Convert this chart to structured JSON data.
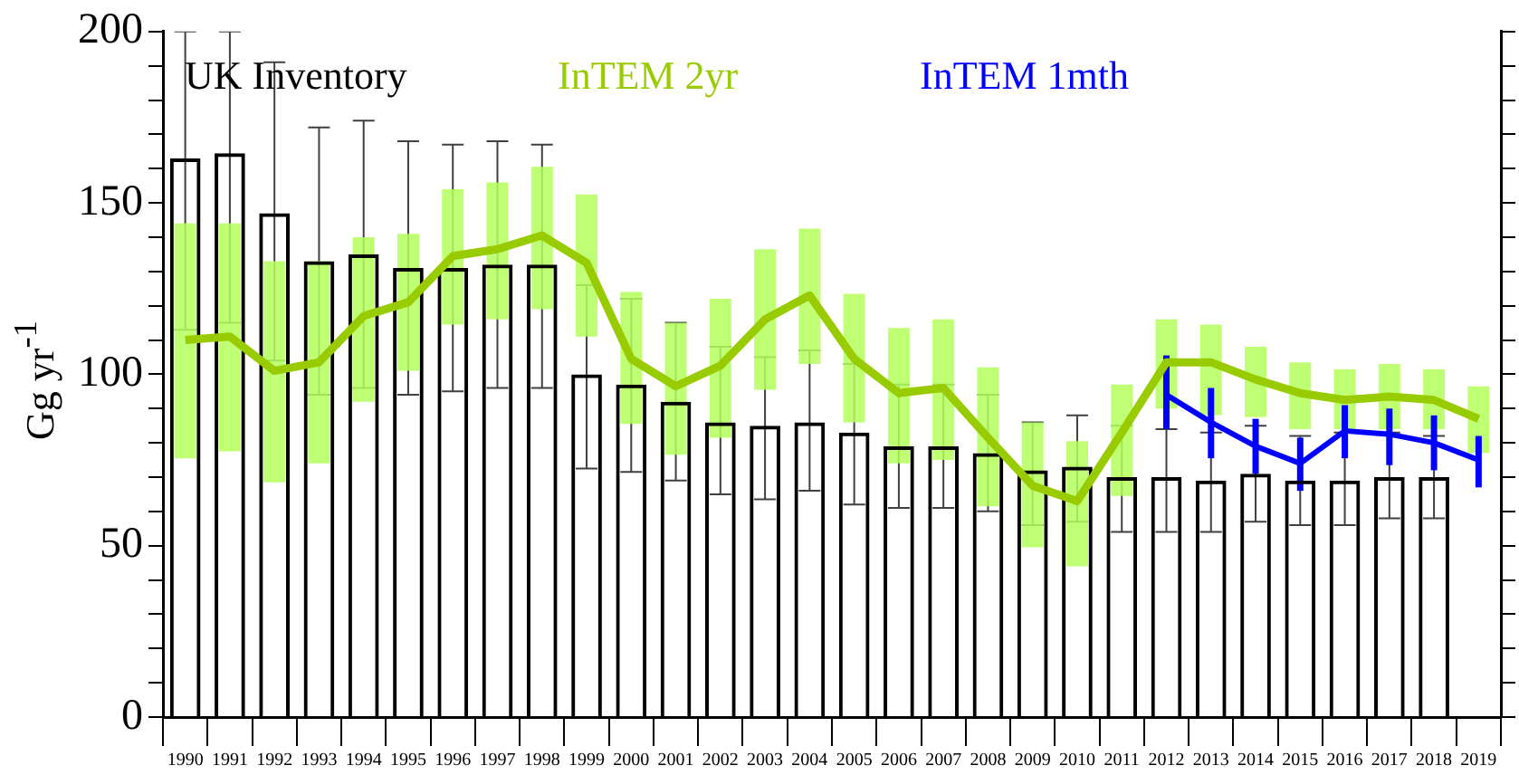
{
  "chart_data": {
    "type": "bar",
    "ylabel": "Gg yr$^{-1}$",
    "legend": "top left",
    "grid": false,
    "categories": [
      "1990",
      "1991",
      "1992",
      "1993",
      "1994",
      "1995",
      "1996",
      "1997",
      "1998",
      "1999",
      "2000",
      "2001",
      "2002",
      "2003",
      "2004",
      "2005",
      "2006",
      "2007",
      "2008",
      "2009",
      "2010",
      "2011",
      "2012",
      "2013",
      "2014",
      "2015",
      "2016",
      "2017",
      "2018",
      "2019"
    ],
    "ylim": [
      0,
      200
    ],
    "yticks": [
      0,
      {
        "value": 10,
        "label": null
      },
      {
        "value": 20,
        "label": null
      },
      {
        "value": 30,
        "label": null
      },
      {
        "value": 40,
        "label": null
      },
      50,
      {
        "value": 60,
        "label": null
      },
      {
        "value": 70,
        "label": null
      },
      {
        "value": 80,
        "label": null
      },
      {
        "value": 90,
        "label": null
      },
      100,
      {
        "value": 110,
        "label": null
      },
      {
        "value": 120,
        "label": null
      },
      {
        "value": 130,
        "label": null
      },
      {
        "value": 140,
        "label": null
      },
      150,
      {
        "value": 160,
        "label": null
      },
      {
        "value": 170,
        "label": null
      },
      {
        "value": 180,
        "label": null
      },
      {
        "value": 190,
        "label": null
      },
      200
    ],
    "series": [
      {
        "name": "UK Inventory",
        "color": "#000000",
        "values": [
          163,
          164.5,
          147,
          133,
          135,
          131,
          131,
          132,
          132,
          100,
          97,
          92,
          86,
          85,
          86,
          83,
          79,
          79,
          77,
          72,
          73,
          70,
          70,
          69,
          71,
          69,
          69,
          70,
          70,
          null
        ],
        "errors": [
          [
            113,
            200
          ],
          [
            115,
            200
          ],
          [
            104,
            191
          ],
          [
            94,
            172
          ],
          [
            96,
            174
          ],
          [
            94,
            168
          ],
          [
            95,
            167
          ],
          [
            96,
            168
          ],
          [
            96,
            167
          ],
          [
            72.5,
            126
          ],
          [
            71.5,
            122
          ],
          [
            69,
            115
          ],
          [
            65,
            108
          ],
          [
            63.5,
            105
          ],
          [
            66,
            107
          ],
          [
            62,
            103
          ],
          [
            61,
            97
          ],
          [
            61,
            97
          ],
          [
            60,
            94
          ],
          [
            56,
            86
          ],
          [
            57,
            88
          ],
          [
            54,
            85
          ],
          [
            54,
            84
          ],
          [
            54,
            83
          ],
          [
            57,
            85
          ],
          [
            56,
            82
          ],
          [
            56,
            83
          ],
          [
            58,
            83
          ],
          [
            58,
            82
          ],
          null
        ]
      },
      {
        "name": "InTEM 2yr",
        "type": "line",
        "color": "#99cc00",
        "values": [
          110,
          111,
          101,
          103.5,
          117,
          121,
          134.5,
          136.5,
          140.5,
          132.5,
          104.5,
          96.5,
          102.5,
          116,
          123,
          104.5,
          94.5,
          96,
          81.5,
          67.5,
          63,
          83,
          103.5,
          103.5,
          98.5,
          94.5,
          92.5,
          93.5,
          92.5,
          87
        ],
        "errors": [
          [
            75.5,
            144
          ],
          [
            77.5,
            144
          ],
          [
            68.5,
            133
          ],
          [
            74,
            133
          ],
          [
            92,
            140
          ],
          [
            101,
            141
          ],
          [
            114.5,
            154
          ],
          [
            116,
            156
          ],
          [
            119,
            160.5
          ],
          [
            111,
            152.5
          ],
          [
            85.5,
            124
          ],
          [
            76.5,
            115
          ],
          [
            81.5,
            122
          ],
          [
            95.5,
            136.5
          ],
          [
            103,
            142.5
          ],
          [
            86,
            123.5
          ],
          [
            74,
            113.5
          ],
          [
            75,
            116
          ],
          [
            61.5,
            102
          ],
          [
            49.5,
            86
          ],
          [
            44,
            80.5
          ],
          [
            64.5,
            97
          ],
          [
            90,
            116
          ],
          [
            88,
            114.5
          ],
          [
            87.5,
            108
          ],
          [
            84,
            103.5
          ],
          [
            84,
            101.5
          ],
          [
            84,
            103
          ],
          [
            84,
            101.5
          ],
          [
            77,
            96.5
          ]
        ]
      },
      {
        "name": "InTEM 1mth",
        "type": "line",
        "color": "#0000ff",
        "values": [
          null,
          null,
          null,
          null,
          null,
          null,
          null,
          null,
          null,
          null,
          null,
          null,
          null,
          null,
          null,
          null,
          null,
          null,
          null,
          null,
          null,
          null,
          94,
          86,
          79,
          74,
          83.5,
          82.5,
          80,
          75
        ],
        "errors": [
          null,
          null,
          null,
          null,
          null,
          null,
          null,
          null,
          null,
          null,
          null,
          null,
          null,
          null,
          null,
          null,
          null,
          null,
          null,
          null,
          null,
          null,
          [
            84,
            105.5
          ],
          [
            75.5,
            96
          ],
          [
            71,
            87
          ],
          [
            66,
            81.5
          ],
          [
            75.5,
            91
          ],
          [
            73.5,
            90
          ],
          [
            72,
            88
          ],
          [
            67,
            82
          ]
        ]
      }
    ]
  }
}
